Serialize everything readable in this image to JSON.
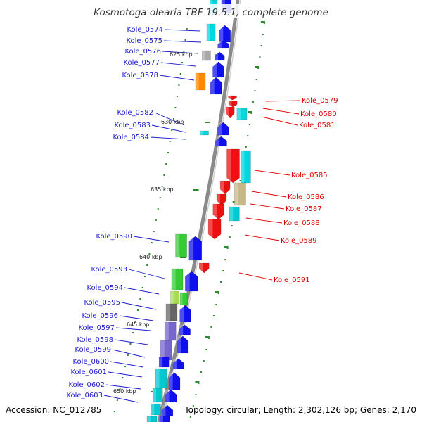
{
  "title": "Kosmotoga olearia TBF 19.5.1, complete genome",
  "accession": "Accession: NC_012785",
  "topology": "Topology: circular; Length: 2,302,126 bp; Genes: 2,170",
  "colors": {
    "forward_label": "#1a1acc",
    "reverse_label": "#e00000",
    "backbone": "#8a8a8a",
    "tick": "#2b8a2b"
  },
  "kbp_markers": [
    "625 kbp",
    "630 kbp",
    "635 kbp",
    "640 kbp",
    "645 kbp",
    "650 kbp"
  ],
  "forward_genes": [
    "Kole_0574",
    "Kole_0575",
    "Kole_0576",
    "Kole_0577",
    "Kole_0578",
    "Kole_0582",
    "Kole_0583",
    "Kole_0584",
    "Kole_0590",
    "Kole_0593",
    "Kole_0594",
    "Kole_0595",
    "Kole_0596",
    "Kole_0597",
    "Kole_0598",
    "Kole_0599",
    "Kole_0600",
    "Kole_0601",
    "Kole_0602",
    "Kole_0603"
  ],
  "reverse_genes": [
    "Kole_0579",
    "Kole_0580",
    "Kole_0581",
    "Kole_0585",
    "Kole_0586",
    "Kole_0587",
    "Kole_0588",
    "Kole_0589",
    "Kole_0591"
  ]
}
